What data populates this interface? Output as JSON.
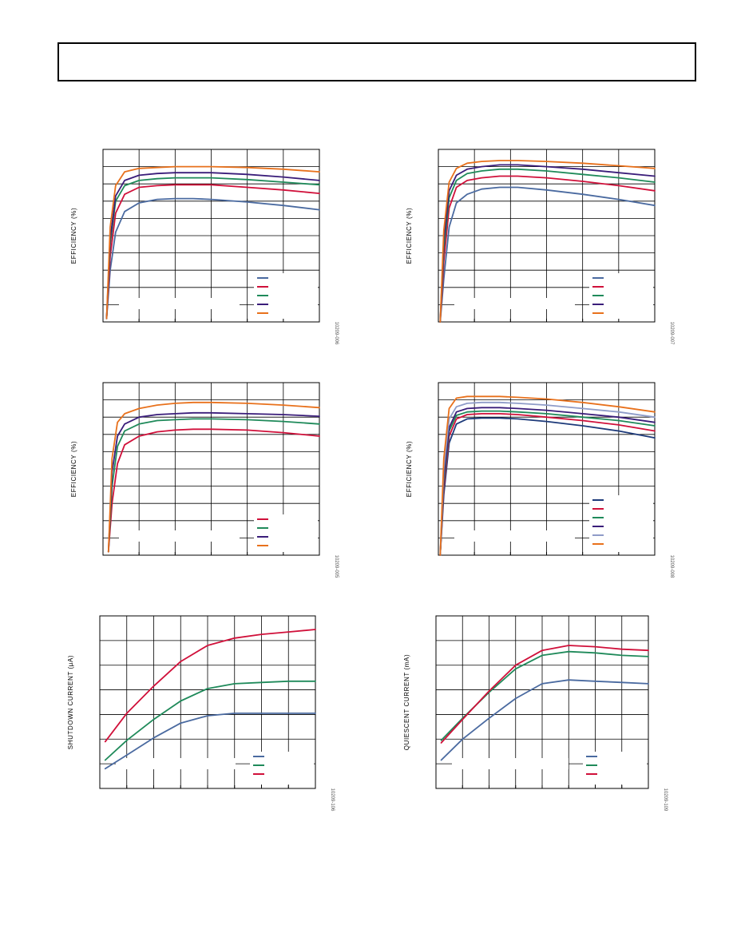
{
  "colors": {
    "blue": "#4a6aa0",
    "red": "#d0103a",
    "green": "#1f8a5a",
    "purple": "#3a1d7a",
    "orange": "#e8711c",
    "navy": "#1d3a7a",
    "lavender": "#8f9cc8",
    "grid": "#000000"
  },
  "chart_data": [
    {
      "type": "line",
      "ylabel": "EFFICIENCY (%)",
      "figure_id": "10209-006",
      "grid": true,
      "legend_placement": "bottom-right",
      "xlim": [
        0,
        6
      ],
      "ylim": [
        0,
        10
      ],
      "series": [
        {
          "color": "blue",
          "x": [
            0.1,
            0.2,
            0.35,
            0.6,
            1,
            1.5,
            2,
            2.5,
            3,
            4,
            5,
            6
          ],
          "y": [
            0.2,
            3.0,
            5.2,
            6.4,
            6.9,
            7.1,
            7.15,
            7.15,
            7.1,
            6.95,
            6.75,
            6.5
          ]
        },
        {
          "color": "red",
          "x": [
            0.1,
            0.2,
            0.35,
            0.6,
            1,
            1.5,
            2,
            2.5,
            3,
            4,
            5,
            6
          ],
          "y": [
            0.2,
            3.8,
            6.3,
            7.4,
            7.8,
            7.9,
            7.95,
            7.95,
            7.95,
            7.8,
            7.65,
            7.45
          ]
        },
        {
          "color": "green",
          "x": [
            0.1,
            0.2,
            0.35,
            0.6,
            1,
            1.5,
            2,
            2.5,
            3,
            4,
            5,
            6
          ],
          "y": [
            0.2,
            4.5,
            7.0,
            7.9,
            8.2,
            8.3,
            8.35,
            8.35,
            8.35,
            8.25,
            8.1,
            7.95
          ]
        },
        {
          "color": "purple",
          "x": [
            0.1,
            0.2,
            0.35,
            0.6,
            1,
            1.5,
            2,
            2.5,
            3,
            4,
            5,
            6
          ],
          "y": [
            0.2,
            4.8,
            7.3,
            8.2,
            8.5,
            8.6,
            8.65,
            8.65,
            8.65,
            8.55,
            8.4,
            8.2
          ]
        },
        {
          "color": "orange",
          "x": [
            0.1,
            0.2,
            0.35,
            0.6,
            1,
            1.5,
            2,
            2.5,
            3,
            4,
            5,
            6
          ],
          "y": [
            0.2,
            5.5,
            7.9,
            8.7,
            8.9,
            8.95,
            9.0,
            9.0,
            9.0,
            8.95,
            8.85,
            8.7
          ]
        }
      ]
    },
    {
      "type": "line",
      "ylabel": "EFFICIENCY (%)",
      "figure_id": "10209-007",
      "grid": true,
      "legend_placement": "bottom-right",
      "xlim": [
        0,
        6
      ],
      "ylim": [
        0,
        10
      ],
      "series": [
        {
          "color": "blue",
          "x": [
            0.05,
            0.15,
            0.3,
            0.5,
            0.8,
            1.2,
            1.7,
            2.2,
            3,
            4,
            5,
            6
          ],
          "y": [
            0,
            2.5,
            5.5,
            6.9,
            7.4,
            7.7,
            7.8,
            7.8,
            7.65,
            7.4,
            7.1,
            6.75
          ]
        },
        {
          "color": "red",
          "x": [
            0.05,
            0.15,
            0.3,
            0.5,
            0.8,
            1.2,
            1.7,
            2.2,
            3,
            4,
            5,
            6
          ],
          "y": [
            0,
            3.5,
            6.6,
            7.8,
            8.2,
            8.35,
            8.45,
            8.45,
            8.35,
            8.15,
            7.9,
            7.6
          ]
        },
        {
          "color": "green",
          "x": [
            0.05,
            0.15,
            0.3,
            0.5,
            0.8,
            1.2,
            1.7,
            2.2,
            3,
            4,
            5,
            6
          ],
          "y": [
            0,
            4.2,
            7.2,
            8.2,
            8.6,
            8.75,
            8.85,
            8.85,
            8.75,
            8.55,
            8.35,
            8.1
          ]
        },
        {
          "color": "purple",
          "x": [
            0.05,
            0.15,
            0.3,
            0.5,
            0.8,
            1.2,
            1.7,
            2.2,
            3,
            4,
            5,
            6
          ],
          "y": [
            0,
            4.7,
            7.6,
            8.5,
            8.85,
            9.0,
            9.1,
            9.1,
            9.0,
            8.85,
            8.65,
            8.45
          ]
        },
        {
          "color": "orange",
          "x": [
            0.05,
            0.15,
            0.3,
            0.5,
            0.8,
            1.2,
            1.7,
            2.2,
            3,
            4,
            5,
            6
          ],
          "y": [
            0,
            5.3,
            8.1,
            8.9,
            9.2,
            9.3,
            9.35,
            9.35,
            9.3,
            9.2,
            9.05,
            8.9
          ]
        }
      ]
    },
    {
      "type": "line",
      "ylabel": "EFFICIENCY (%)",
      "figure_id": "10209-005",
      "grid": true,
      "legend_placement": "bottom-right",
      "xlim": [
        0,
        6
      ],
      "ylim": [
        0,
        10
      ],
      "series": [
        {
          "color": "red",
          "x": [
            0.15,
            0.25,
            0.4,
            0.6,
            1,
            1.5,
            2,
            2.5,
            3,
            4,
            5,
            6
          ],
          "y": [
            0.2,
            3.0,
            5.3,
            6.4,
            6.9,
            7.15,
            7.25,
            7.3,
            7.3,
            7.25,
            7.1,
            6.9
          ]
        },
        {
          "color": "green",
          "x": [
            0.15,
            0.25,
            0.4,
            0.6,
            1,
            1.5,
            2,
            2.5,
            3,
            4,
            5,
            6
          ],
          "y": [
            0.2,
            4.0,
            6.3,
            7.2,
            7.6,
            7.8,
            7.85,
            7.9,
            7.9,
            7.85,
            7.75,
            7.6
          ]
        },
        {
          "color": "purple",
          "x": [
            0.15,
            0.25,
            0.4,
            0.6,
            1,
            1.5,
            2,
            2.5,
            3,
            4,
            5,
            6
          ],
          "y": [
            0.2,
            4.8,
            6.9,
            7.6,
            8.0,
            8.15,
            8.2,
            8.25,
            8.25,
            8.2,
            8.15,
            8.05
          ]
        },
        {
          "color": "orange",
          "x": [
            0.15,
            0.25,
            0.4,
            0.6,
            1,
            1.5,
            2,
            2.5,
            3,
            4,
            5,
            6
          ],
          "y": [
            0.2,
            5.6,
            7.7,
            8.2,
            8.5,
            8.7,
            8.8,
            8.85,
            8.85,
            8.8,
            8.7,
            8.55
          ]
        }
      ]
    },
    {
      "type": "line",
      "ylabel": "EFFICIENCY (%)",
      "figure_id": "10209-008",
      "grid": true,
      "legend_placement": "bottom-right",
      "xlim": [
        0,
        6
      ],
      "ylim": [
        0,
        10
      ],
      "series": [
        {
          "color": "navy",
          "x": [
            0.05,
            0.15,
            0.3,
            0.5,
            0.8,
            1.2,
            1.7,
            2.2,
            3,
            4,
            5,
            6
          ],
          "y": [
            0,
            3.5,
            6.5,
            7.6,
            7.9,
            7.95,
            7.95,
            7.9,
            7.75,
            7.5,
            7.2,
            6.8
          ]
        },
        {
          "color": "red",
          "x": [
            0.05,
            0.15,
            0.3,
            0.5,
            0.8,
            1.2,
            1.7,
            2.2,
            3,
            4,
            5,
            6
          ],
          "y": [
            0,
            3.9,
            6.9,
            7.9,
            8.15,
            8.2,
            8.2,
            8.15,
            8.0,
            7.8,
            7.55,
            7.2
          ]
        },
        {
          "color": "green",
          "x": [
            0.05,
            0.15,
            0.3,
            0.5,
            0.8,
            1.2,
            1.7,
            2.2,
            3,
            4,
            5,
            6
          ],
          "y": [
            0,
            4.2,
            7.2,
            8.1,
            8.3,
            8.35,
            8.35,
            8.3,
            8.2,
            8.0,
            7.8,
            7.5
          ]
        },
        {
          "color": "purple",
          "x": [
            0.05,
            0.15,
            0.3,
            0.5,
            0.8,
            1.2,
            1.7,
            2.2,
            3,
            4,
            5,
            6
          ],
          "y": [
            0,
            4.5,
            7.4,
            8.3,
            8.5,
            8.55,
            8.55,
            8.5,
            8.4,
            8.2,
            8.0,
            7.7
          ]
        },
        {
          "color": "lavender",
          "x": [
            0.05,
            0.15,
            0.3,
            0.5,
            0.8,
            1.2,
            1.7,
            2.2,
            3,
            4,
            5,
            6
          ],
          "y": [
            0,
            5.0,
            7.9,
            8.6,
            8.8,
            8.85,
            8.85,
            8.8,
            8.7,
            8.5,
            8.3,
            8.0
          ]
        },
        {
          "color": "orange",
          "x": [
            0.05,
            0.15,
            0.3,
            0.5,
            0.8,
            1.2,
            1.7,
            2.2,
            3,
            4,
            5,
            6
          ],
          "y": [
            0,
            5.6,
            8.5,
            9.1,
            9.2,
            9.2,
            9.2,
            9.15,
            9.05,
            8.85,
            8.6,
            8.3
          ]
        }
      ]
    },
    {
      "type": "line",
      "ylabel": "SHUTDOWN CURRENT (µA)",
      "figure_id": "10209-106",
      "grid": true,
      "legend_placement": "bottom-right",
      "xlim": [
        0,
        8
      ],
      "ylim": [
        0,
        7
      ],
      "series": [
        {
          "color": "blue",
          "x": [
            0.2,
            1,
            2,
            3,
            4,
            5,
            6,
            7,
            8
          ],
          "y": [
            0.8,
            1.35,
            2.05,
            2.65,
            2.95,
            3.05,
            3.05,
            3.05,
            3.05
          ]
        },
        {
          "color": "green",
          "x": [
            0.2,
            1,
            2,
            3,
            4,
            5,
            6,
            7,
            8
          ],
          "y": [
            1.15,
            1.95,
            2.8,
            3.55,
            4.05,
            4.25,
            4.3,
            4.35,
            4.35
          ]
        },
        {
          "color": "red",
          "x": [
            0.2,
            1,
            2,
            3,
            4,
            5,
            6,
            7,
            8
          ],
          "y": [
            1.9,
            3.05,
            4.15,
            5.15,
            5.8,
            6.1,
            6.25,
            6.35,
            6.45
          ]
        }
      ]
    },
    {
      "type": "line",
      "ylabel": "QUIESCENT CURRENT (mA)",
      "figure_id": "10209-109",
      "grid": true,
      "legend_placement": "bottom-right",
      "xlim": [
        0,
        8
      ],
      "ylim": [
        0,
        7
      ],
      "series": [
        {
          "color": "blue",
          "x": [
            0.2,
            1,
            2,
            3,
            4,
            5,
            6,
            7,
            8
          ],
          "y": [
            1.15,
            2.0,
            2.85,
            3.65,
            4.25,
            4.4,
            4.35,
            4.3,
            4.25
          ]
        },
        {
          "color": "green",
          "x": [
            0.2,
            1,
            2,
            3,
            4,
            5,
            6,
            7,
            8
          ],
          "y": [
            1.95,
            2.85,
            3.9,
            4.85,
            5.4,
            5.55,
            5.5,
            5.4,
            5.35
          ]
        },
        {
          "color": "red",
          "x": [
            0.2,
            1,
            2,
            3,
            4,
            5,
            6,
            7,
            8
          ],
          "y": [
            1.85,
            2.8,
            3.95,
            5.0,
            5.6,
            5.8,
            5.75,
            5.65,
            5.6
          ]
        }
      ]
    }
  ]
}
